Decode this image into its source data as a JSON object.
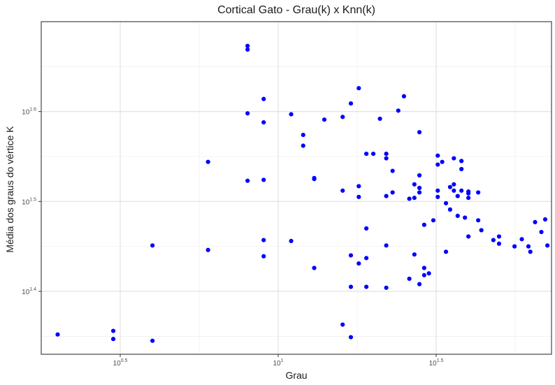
{
  "chart_data": {
    "type": "scatter",
    "title": "Cortical Gato - Grau(k) x Knn(k)",
    "xlabel": "Grau",
    "ylabel": "Média dos graus do vértice K",
    "x_scale": "log10",
    "y_scale": "log10",
    "xlim_log10": [
      0.25,
      1.865
    ],
    "ylim_log10": [
      1.33,
      1.7
    ],
    "x_ticks": [
      {
        "base": "10",
        "exp": "0.5",
        "log10": 0.5
      },
      {
        "base": "10",
        "exp": "1",
        "log10": 1.0
      },
      {
        "base": "10",
        "exp": "1.5",
        "log10": 1.5
      }
    ],
    "y_ticks": [
      {
        "base": "10",
        "exp": "1.4",
        "log10": 1.4
      },
      {
        "base": "10",
        "exp": "1.5",
        "log10": 1.5
      },
      {
        "base": "10",
        "exp": "1.6",
        "log10": 1.6
      }
    ],
    "grid": true,
    "point_color": "#0000ff",
    "panel_border_color": "#333333",
    "grid_color": "#ebebeb",
    "points_log10": [
      [
        0.302,
        1.352
      ],
      [
        0.478,
        1.356
      ],
      [
        0.478,
        1.347
      ],
      [
        0.602,
        1.345
      ],
      [
        0.602,
        1.451
      ],
      [
        0.778,
        1.544
      ],
      [
        0.778,
        1.446
      ],
      [
        0.903,
        1.673
      ],
      [
        0.903,
        1.669
      ],
      [
        0.903,
        1.598
      ],
      [
        0.903,
        1.523
      ],
      [
        0.954,
        1.614
      ],
      [
        0.954,
        1.588
      ],
      [
        0.954,
        1.524
      ],
      [
        0.954,
        1.457
      ],
      [
        0.954,
        1.439
      ],
      [
        1.041,
        1.597
      ],
      [
        1.041,
        1.456
      ],
      [
        1.079,
        1.574
      ],
      [
        1.079,
        1.562
      ],
      [
        1.114,
        1.526
      ],
      [
        1.114,
        1.525
      ],
      [
        1.114,
        1.426
      ],
      [
        1.146,
        1.591
      ],
      [
        1.204,
        1.594
      ],
      [
        1.204,
        1.512
      ],
      [
        1.204,
        1.363
      ],
      [
        1.23,
        1.609
      ],
      [
        1.23,
        1.44
      ],
      [
        1.23,
        1.405
      ],
      [
        1.23,
        1.349
      ],
      [
        1.255,
        1.626
      ],
      [
        1.255,
        1.517
      ],
      [
        1.255,
        1.505
      ],
      [
        1.255,
        1.431
      ],
      [
        1.279,
        1.553
      ],
      [
        1.279,
        1.47
      ],
      [
        1.279,
        1.437
      ],
      [
        1.279,
        1.405
      ],
      [
        1.301,
        1.553
      ],
      [
        1.322,
        1.592
      ],
      [
        1.342,
        1.553
      ],
      [
        1.342,
        1.548
      ],
      [
        1.342,
        1.506
      ],
      [
        1.342,
        1.451
      ],
      [
        1.342,
        1.404
      ],
      [
        1.362,
        1.534
      ],
      [
        1.362,
        1.51
      ],
      [
        1.38,
        1.601
      ],
      [
        1.398,
        1.617
      ],
      [
        1.415,
        1.503
      ],
      [
        1.415,
        1.414
      ],
      [
        1.431,
        1.519
      ],
      [
        1.431,
        1.504
      ],
      [
        1.431,
        1.441
      ],
      [
        1.447,
        1.529
      ],
      [
        1.447,
        1.515
      ],
      [
        1.447,
        1.51
      ],
      [
        1.447,
        1.577
      ],
      [
        1.447,
        1.408
      ],
      [
        1.462,
        1.474
      ],
      [
        1.462,
        1.426
      ],
      [
        1.462,
        1.418
      ],
      [
        1.477,
        1.42
      ],
      [
        1.491,
        1.479
      ],
      [
        1.505,
        1.512
      ],
      [
        1.505,
        1.505
      ],
      [
        1.505,
        1.541
      ],
      [
        1.505,
        1.551
      ],
      [
        1.519,
        1.544
      ],
      [
        1.531,
        1.498
      ],
      [
        1.531,
        1.444
      ],
      [
        1.544,
        1.516
      ],
      [
        1.544,
        1.491
      ],
      [
        1.556,
        1.519
      ],
      [
        1.556,
        1.512
      ],
      [
        1.556,
        1.548
      ],
      [
        1.568,
        1.506
      ],
      [
        1.568,
        1.484
      ],
      [
        1.58,
        1.536
      ],
      [
        1.58,
        1.545
      ],
      [
        1.58,
        1.512
      ],
      [
        1.591,
        1.482
      ],
      [
        1.602,
        1.509
      ],
      [
        1.602,
        1.504
      ],
      [
        1.602,
        1.511
      ],
      [
        1.602,
        1.461
      ],
      [
        1.633,
        1.51
      ],
      [
        1.633,
        1.479
      ],
      [
        1.643,
        1.468
      ],
      [
        1.681,
        1.457
      ],
      [
        1.699,
        1.461
      ],
      [
        1.699,
        1.453
      ],
      [
        1.748,
        1.45
      ],
      [
        1.771,
        1.458
      ],
      [
        1.792,
        1.45
      ],
      [
        1.798,
        1.444
      ],
      [
        1.813,
        1.477
      ],
      [
        1.833,
        1.466
      ],
      [
        1.845,
        1.48
      ],
      [
        1.852,
        1.451
      ]
    ]
  }
}
